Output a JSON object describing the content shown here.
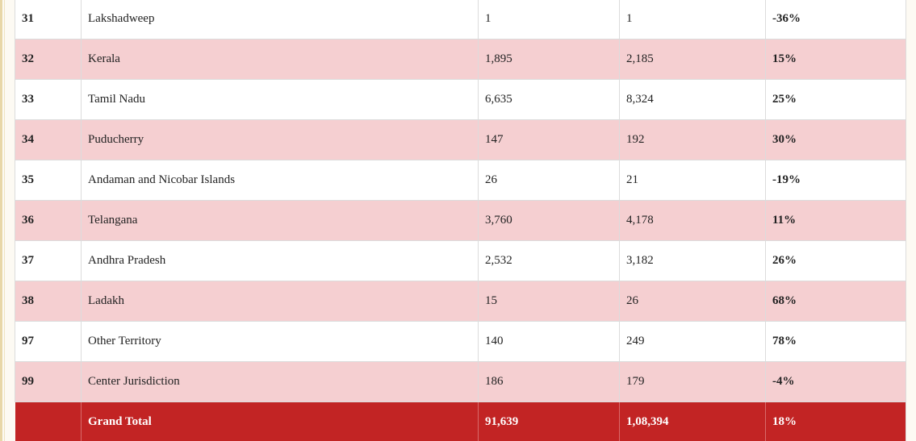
{
  "rows": [
    {
      "code": "31",
      "state": "Lakshadweep",
      "y1": "1",
      "y2": "1",
      "growth": "-36%"
    },
    {
      "code": "32",
      "state": "Kerala",
      "y1": "1,895",
      "y2": "2,185",
      "growth": "15%"
    },
    {
      "code": "33",
      "state": "Tamil Nadu",
      "y1": "6,635",
      "y2": "8,324",
      "growth": "25%"
    },
    {
      "code": "34",
      "state": "Puducherry",
      "y1": "147",
      "y2": "192",
      "growth": "30%"
    },
    {
      "code": "35",
      "state": "Andaman and Nicobar Islands",
      "y1": "26",
      "y2": "21",
      "growth": "-19%"
    },
    {
      "code": "36",
      "state": "Telangana",
      "y1": "3,760",
      "y2": "4,178",
      "growth": "11%"
    },
    {
      "code": "37",
      "state": "Andhra Pradesh",
      "y1": "2,532",
      "y2": "3,182",
      "growth": "26%"
    },
    {
      "code": "38",
      "state": "Ladakh",
      "y1": "15",
      "y2": "26",
      "growth": "68%"
    },
    {
      "code": "97",
      "state": "Other Territory",
      "y1": "140",
      "y2": "249",
      "growth": "78%"
    },
    {
      "code": "99",
      "state": "Center Jurisdiction",
      "y1": "186",
      "y2": "179",
      "growth": "-4%"
    }
  ],
  "total": {
    "code": "",
    "label": "Grand Total",
    "y1": "91,639",
    "y2": "1,08,394",
    "growth": "18%"
  },
  "colors": {
    "row_alt": "#f5cfd1",
    "total_bg": "#c22424"
  }
}
